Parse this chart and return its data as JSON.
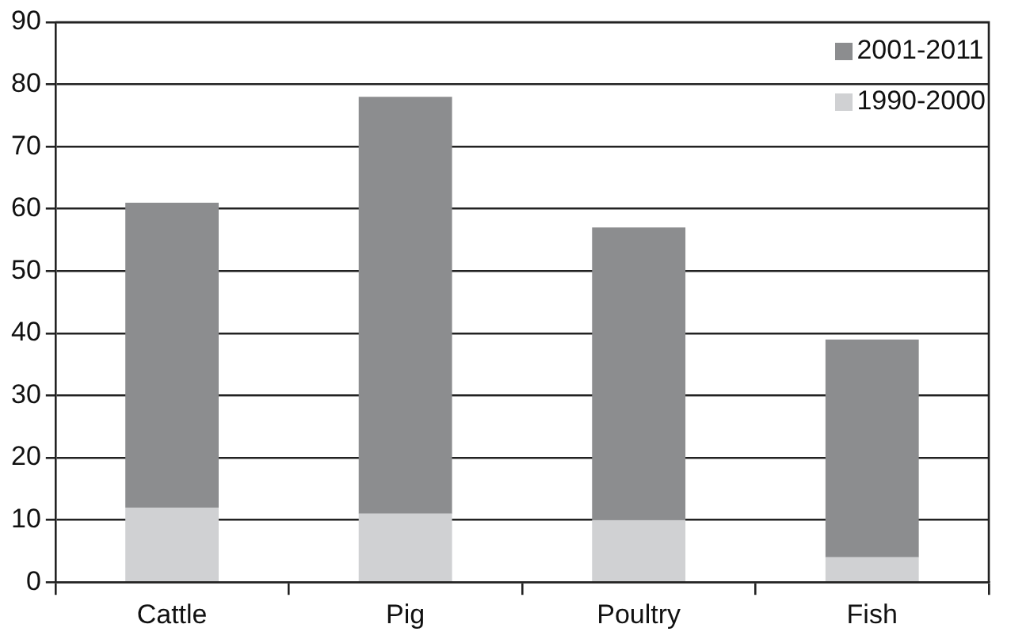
{
  "chart_data": {
    "type": "bar",
    "stacked": true,
    "categories": [
      "Cattle",
      "Pig",
      "Poultry",
      "Fish"
    ],
    "series": [
      {
        "name": "1990-2000",
        "color": "#d0d1d3",
        "values": [
          12,
          11,
          10,
          4
        ]
      },
      {
        "name": "2001-2011",
        "color": "#8c8d8f",
        "values": [
          49,
          67,
          47,
          35
        ]
      }
    ],
    "ylim": [
      0,
      90
    ],
    "yticks": [
      0,
      10,
      20,
      30,
      40,
      50,
      60,
      70,
      80,
      90
    ],
    "grid": "y",
    "legend": "top right"
  }
}
